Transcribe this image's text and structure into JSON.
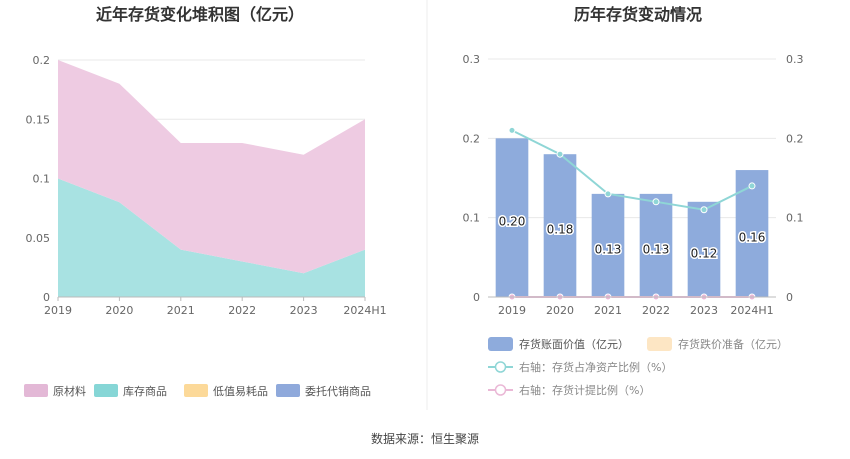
{
  "footer": {
    "source": "数据来源：恒生聚源"
  },
  "chart_data": [
    {
      "type": "area",
      "title": "近年存货变化堆积图（亿元）",
      "categories": [
        "2019",
        "2020",
        "2021",
        "2022",
        "2023",
        "2024H1"
      ],
      "stacked": true,
      "ylim": [
        0,
        0.2
      ],
      "yticks": [
        "0",
        "0.05",
        "0.1",
        "0.15",
        "0.2"
      ],
      "grid": true,
      "legend_position": "bottom",
      "series": [
        {
          "name": "原材料",
          "color": "#eecbe2",
          "values": [
            0.1,
            0.1,
            0.09,
            0.1,
            0.1,
            0.11
          ]
        },
        {
          "name": "库存商品",
          "color": "#a8e2e2",
          "values": [
            0.1,
            0.08,
            0.04,
            0.03,
            0.02,
            0.04
          ]
        },
        {
          "name": "低值易耗品",
          "color": "#fcd999",
          "values": [
            0,
            0,
            0,
            0,
            0,
            0
          ]
        },
        {
          "name": "委托代销商品",
          "color": "#8fa9db",
          "values": [
            0,
            0,
            0,
            0,
            0,
            0
          ]
        }
      ],
      "legend": [
        {
          "name": "原材料",
          "color": "#e3b8d6"
        },
        {
          "name": "库存商品",
          "color": "#86d6d6"
        },
        {
          "name": "低值易耗品",
          "color": "#fcd999"
        },
        {
          "name": "委托代销商品",
          "color": "#8fa9db"
        }
      ]
    },
    {
      "type": "bar",
      "title": "历年存货变动情况",
      "categories": [
        "2019",
        "2020",
        "2021",
        "2022",
        "2023",
        "2024H1"
      ],
      "ylim": [
        0,
        0.3
      ],
      "yticks": [
        "0",
        "0.1",
        "0.2",
        "0.3"
      ],
      "y2lim": [
        0,
        0.3
      ],
      "y2ticks": [
        "0",
        "0.1",
        "0.2",
        "0.3"
      ],
      "grid": true,
      "legend_position": "bottom",
      "series": [
        {
          "name": "存货账面价值（亿元）",
          "kind": "bar",
          "color": "#8eabdc",
          "values": [
            0.2,
            0.18,
            0.13,
            0.13,
            0.12,
            0.16
          ],
          "labels": [
            "0.20",
            "0.18",
            "0.13",
            "0.13",
            "0.12",
            "0.16"
          ]
        },
        {
          "name": "存货跌价准备（亿元）",
          "kind": "bar",
          "color": "#fde6c4",
          "values": [
            0,
            0,
            0,
            0,
            0,
            0
          ]
        },
        {
          "name": "右轴：存货占净资产比例（%）",
          "kind": "line",
          "axis": "right",
          "color": "#8fd6d6",
          "values": [
            0.21,
            0.18,
            0.13,
            0.12,
            0.11,
            0.14
          ]
        },
        {
          "name": "右轴：存货计提比例（%）",
          "kind": "line",
          "axis": "right",
          "color": "#eab8d6",
          "values": [
            0,
            0,
            0,
            0,
            0,
            0
          ]
        }
      ]
    }
  ]
}
